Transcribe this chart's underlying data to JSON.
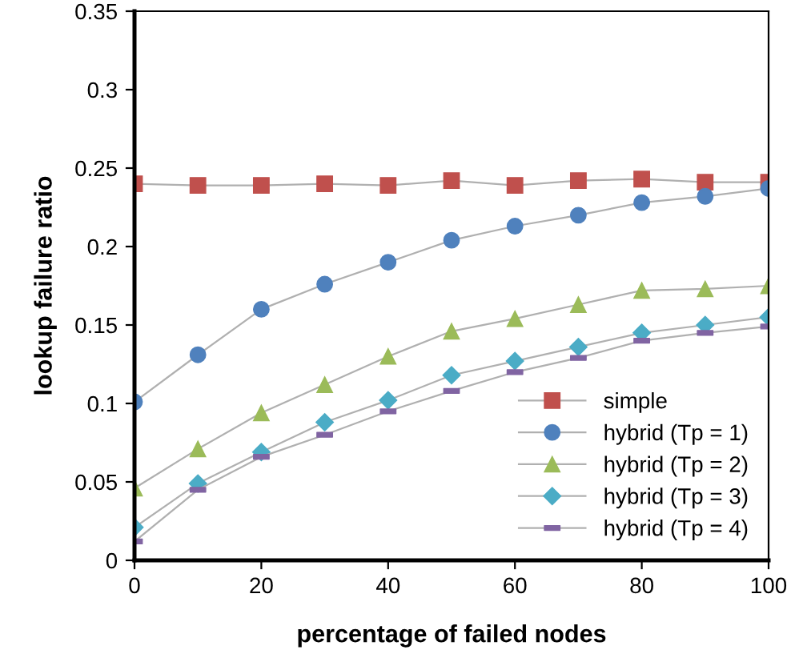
{
  "chart_data": {
    "type": "line",
    "xlabel": "percentage of failed nodes",
    "ylabel": "lookup failure ratio",
    "x": [
      0,
      10,
      20,
      30,
      40,
      50,
      60,
      70,
      80,
      90,
      100
    ],
    "xlim": [
      0,
      100
    ],
    "xticks": [
      0,
      20,
      40,
      60,
      80,
      100
    ],
    "ylim": [
      0,
      0.35
    ],
    "yticks": [
      {
        "value": 0,
        "label": "0"
      },
      {
        "value": 0.05,
        "label": "0.05"
      },
      {
        "value": 0.1,
        "label": "0.1"
      },
      {
        "value": 0.15,
        "label": "0.15"
      },
      {
        "value": 0.2,
        "label": "0.2"
      },
      {
        "value": 0.25,
        "label": "0.25"
      },
      {
        "value": 0.3,
        "label": "0.3"
      },
      {
        "value": 0.35,
        "label": "0.35"
      }
    ],
    "grid": false,
    "legend": "bottom right",
    "series": [
      {
        "name": "simple",
        "color": "#c0504d",
        "marker": "square",
        "values": [
          0.24,
          0.239,
          0.239,
          0.24,
          0.239,
          0.242,
          0.239,
          0.242,
          0.243,
          0.241,
          0.241
        ]
      },
      {
        "name": "hybrid (Tp = 1)",
        "color": "#4f81bd",
        "marker": "circle",
        "values": [
          0.101,
          0.131,
          0.16,
          0.176,
          0.19,
          0.204,
          0.213,
          0.22,
          0.228,
          0.232,
          0.237
        ]
      },
      {
        "name": "hybrid (Tp = 2)",
        "color": "#9bbb59",
        "marker": "triangle",
        "values": [
          0.046,
          0.071,
          0.094,
          0.112,
          0.13,
          0.146,
          0.154,
          0.163,
          0.172,
          0.173,
          0.175
        ]
      },
      {
        "name": "hybrid (Tp = 3)",
        "color": "#4bacc6",
        "marker": "diamond",
        "values": [
          0.021,
          0.049,
          0.069,
          0.088,
          0.102,
          0.118,
          0.127,
          0.136,
          0.145,
          0.15,
          0.155
        ]
      },
      {
        "name": "hybrid (Tp = 4)",
        "color": "#8064a2",
        "marker": "square",
        "values": [
          0.012,
          0.045,
          0.066,
          0.08,
          0.095,
          0.108,
          0.12,
          0.129,
          0.14,
          0.145,
          0.149
        ]
      }
    ]
  }
}
